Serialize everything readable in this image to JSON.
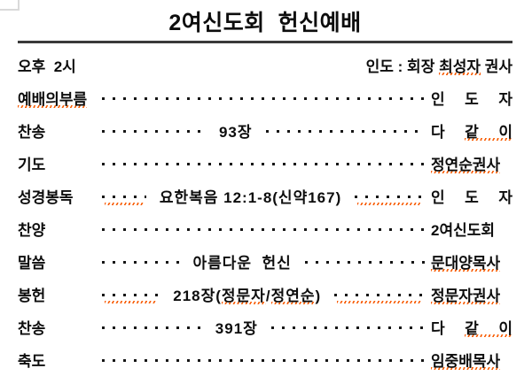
{
  "title": "2여신도회  헌신예배",
  "colors": {
    "spell_underline": "#f85c00",
    "title_rule": "#3a3a3a",
    "text": "#0d0d0d",
    "corner_artifact": "#d9d9d9"
  },
  "header_row": {
    "time": "오후  2시",
    "leader_segments": [
      {
        "t": "인도 : 회장 ",
        "m": false
      },
      {
        "t": "최성자",
        "m": true
      },
      {
        "t": " 권사",
        "m": false
      }
    ]
  },
  "rows": [
    {
      "label": "예배의부름",
      "label_m": true,
      "dots_m": false,
      "center": [],
      "right": [
        {
          "t": "인 도 자",
          "m": false
        }
      ]
    },
    {
      "label": "찬송",
      "label_m": false,
      "dots_m": false,
      "center": [
        {
          "t": "93장",
          "m": false
        }
      ],
      "right": [
        {
          "t": "다 ",
          "m": false
        },
        {
          "t": "같 이",
          "m": true
        }
      ]
    },
    {
      "label": "기도",
      "label_m": false,
      "dots_m": false,
      "center": [],
      "right": [
        {
          "t": "정연순권사",
          "m": true
        }
      ]
    },
    {
      "label": "성경봉독",
      "label_m": false,
      "dots_m": true,
      "center": [
        {
          "t": "요한복음 12:1-8(신약167)",
          "m": false
        }
      ],
      "right": [
        {
          "t": "인 도 자",
          "m": false
        }
      ]
    },
    {
      "label": "찬양",
      "label_m": false,
      "dots_m": false,
      "center": [],
      "right": [
        {
          "t": "2여신도회",
          "m": false
        }
      ]
    },
    {
      "label": "말씀",
      "label_m": false,
      "dots_m": false,
      "center": [
        {
          "t": "아름다운  헌신",
          "m": false
        }
      ],
      "right": [
        {
          "t": "문대양목사",
          "m": true
        }
      ]
    },
    {
      "label": "봉헌",
      "label_m": false,
      "dots_m": true,
      "center": [
        {
          "t": "218장(",
          "m": false
        },
        {
          "t": "정문자",
          "m": true
        },
        {
          "t": "/",
          "m": false
        },
        {
          "t": "정연순",
          "m": true
        },
        {
          "t": ")",
          "m": false
        }
      ],
      "right": [
        {
          "t": "정문자권사",
          "m": true
        }
      ]
    },
    {
      "label": "찬송",
      "label_m": false,
      "dots_m": false,
      "center": [
        {
          "t": "391장",
          "m": false
        }
      ],
      "right": [
        {
          "t": "다 ",
          "m": false
        },
        {
          "t": "같 이",
          "m": true
        }
      ]
    },
    {
      "label": "축도",
      "label_m": false,
      "dots_m": false,
      "center": [],
      "right": [
        {
          "t": "임중배목사",
          "m": true
        }
      ]
    }
  ]
}
